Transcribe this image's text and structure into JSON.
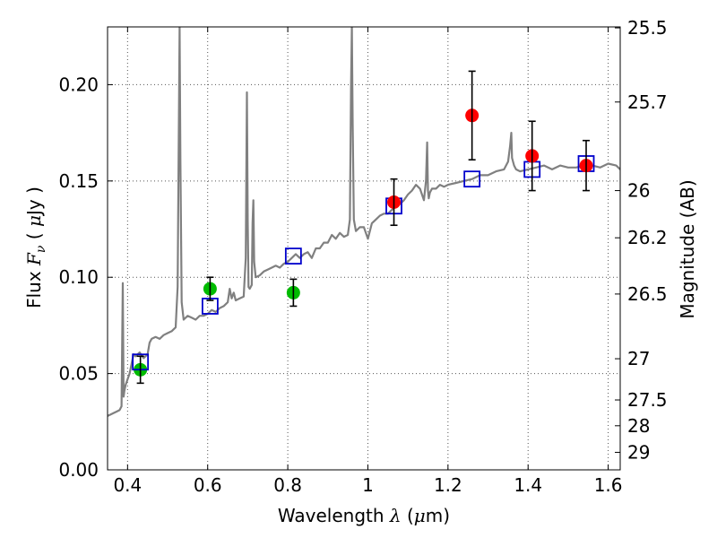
{
  "chart_data": {
    "type": "scatter",
    "title": "",
    "xlabel": {
      "main": "Wavelength",
      "symbol": "λ",
      "unit_open": "(",
      "unit_mu": "μ",
      "unit_rest": "m)"
    },
    "ylabel": {
      "main": "Flux",
      "symbol": "F",
      "subscript": "ν",
      "unit_open": "(",
      "unit_mu": "μ",
      "unit_rest": "Jy )"
    },
    "ylabel_right": "Magnitude (AB)",
    "xlim": [
      0.35,
      1.63
    ],
    "ylim": [
      0.0,
      0.23
    ],
    "grid": true,
    "x_ticks": [
      {
        "value": 0.4,
        "label": "0.4"
      },
      {
        "value": 0.6,
        "label": "0.6"
      },
      {
        "value": 0.8,
        "label": "0.8"
      },
      {
        "value": 1.0,
        "label": "1"
      },
      {
        "value": 1.2,
        "label": "1.2"
      },
      {
        "value": 1.4,
        "label": "1.4"
      },
      {
        "value": 1.6,
        "label": "1.6"
      }
    ],
    "y_ticks": [
      {
        "value": 0.0,
        "label": "0.00"
      },
      {
        "value": 0.05,
        "label": "0.05"
      },
      {
        "value": 0.1,
        "label": "0.10"
      },
      {
        "value": 0.15,
        "label": "0.15"
      },
      {
        "value": 0.2,
        "label": "0.20"
      }
    ],
    "right_ticks": [
      {
        "flux": 0.2295,
        "label": "25.5"
      },
      {
        "flux": 0.191,
        "label": "25.7"
      },
      {
        "flux": 0.145,
        "label": "26"
      },
      {
        "flux": 0.1205,
        "label": "26.2"
      },
      {
        "flux": 0.0913,
        "label": "26.5"
      },
      {
        "flux": 0.0577,
        "label": "27"
      },
      {
        "flux": 0.0363,
        "label": "27.5"
      },
      {
        "flux": 0.0229,
        "label": "28"
      },
      {
        "flux": 0.0091,
        "label": "29"
      }
    ],
    "series": [
      {
        "name": "model spectrum",
        "kind": "line",
        "color": "#808080",
        "x": [
          0.35,
          0.36,
          0.37,
          0.38,
          0.385,
          0.388,
          0.39,
          0.392,
          0.395,
          0.4,
          0.405,
          0.41,
          0.415,
          0.42,
          0.43,
          0.44,
          0.45,
          0.455,
          0.46,
          0.47,
          0.48,
          0.49,
          0.5,
          0.51,
          0.52,
          0.525,
          0.528,
          0.53,
          0.532,
          0.535,
          0.54,
          0.55,
          0.56,
          0.57,
          0.58,
          0.59,
          0.6,
          0.61,
          0.62,
          0.63,
          0.64,
          0.65,
          0.655,
          0.66,
          0.665,
          0.67,
          0.68,
          0.69,
          0.695,
          0.698,
          0.7,
          0.702,
          0.705,
          0.71,
          0.712,
          0.714,
          0.716,
          0.72,
          0.73,
          0.74,
          0.75,
          0.76,
          0.77,
          0.78,
          0.79,
          0.8,
          0.81,
          0.82,
          0.83,
          0.84,
          0.85,
          0.86,
          0.87,
          0.88,
          0.89,
          0.9,
          0.91,
          0.92,
          0.93,
          0.94,
          0.95,
          0.955,
          0.958,
          0.96,
          0.962,
          0.965,
          0.97,
          0.98,
          0.99,
          1.0,
          1.01,
          1.02,
          1.03,
          1.04,
          1.05,
          1.06,
          1.07,
          1.08,
          1.09,
          1.1,
          1.11,
          1.12,
          1.13,
          1.14,
          1.145,
          1.148,
          1.15,
          1.152,
          1.155,
          1.16,
          1.17,
          1.18,
          1.19,
          1.2,
          1.22,
          1.24,
          1.26,
          1.28,
          1.3,
          1.32,
          1.34,
          1.35,
          1.355,
          1.358,
          1.36,
          1.365,
          1.37,
          1.38,
          1.4,
          1.42,
          1.44,
          1.46,
          1.48,
          1.5,
          1.52,
          1.54,
          1.56,
          1.58,
          1.6,
          1.62,
          1.63
        ],
        "y": [
          0.028,
          0.029,
          0.03,
          0.031,
          0.033,
          0.097,
          0.038,
          0.041,
          0.044,
          0.047,
          0.05,
          0.055,
          0.06,
          0.059,
          0.061,
          0.058,
          0.06,
          0.066,
          0.068,
          0.069,
          0.068,
          0.07,
          0.071,
          0.072,
          0.074,
          0.095,
          0.175,
          0.23,
          0.16,
          0.087,
          0.078,
          0.08,
          0.079,
          0.078,
          0.08,
          0.08,
          0.081,
          0.083,
          0.082,
          0.084,
          0.085,
          0.087,
          0.094,
          0.089,
          0.092,
          0.088,
          0.089,
          0.09,
          0.11,
          0.196,
          0.13,
          0.095,
          0.094,
          0.096,
          0.128,
          0.14,
          0.108,
          0.1,
          0.101,
          0.103,
          0.104,
          0.105,
          0.106,
          0.105,
          0.107,
          0.108,
          0.11,
          0.112,
          0.11,
          0.112,
          0.113,
          0.11,
          0.115,
          0.115,
          0.118,
          0.118,
          0.122,
          0.12,
          0.123,
          0.121,
          0.122,
          0.13,
          0.2,
          0.23,
          0.18,
          0.13,
          0.124,
          0.126,
          0.126,
          0.12,
          0.128,
          0.13,
          0.132,
          0.133,
          0.133,
          0.135,
          0.137,
          0.138,
          0.14,
          0.143,
          0.145,
          0.148,
          0.146,
          0.14,
          0.15,
          0.17,
          0.145,
          0.141,
          0.144,
          0.146,
          0.146,
          0.148,
          0.147,
          0.148,
          0.149,
          0.15,
          0.151,
          0.153,
          0.153,
          0.155,
          0.156,
          0.16,
          0.168,
          0.175,
          0.162,
          0.158,
          0.156,
          0.155,
          0.156,
          0.157,
          0.158,
          0.156,
          0.158,
          0.157,
          0.157,
          0.158,
          0.158,
          0.157,
          0.159,
          0.158,
          0.156
        ]
      },
      {
        "name": "green photometry",
        "kind": "points",
        "marker": "circle",
        "color": "#00bb00",
        "points": [
          {
            "x": 0.432,
            "y": 0.052,
            "yerr": 0.007
          },
          {
            "x": 0.606,
            "y": 0.094,
            "yerr": 0.006
          },
          {
            "x": 0.814,
            "y": 0.092,
            "yerr": 0.007
          }
        ]
      },
      {
        "name": "red photometry",
        "kind": "points",
        "marker": "circle",
        "color": "#ff0000",
        "points": [
          {
            "x": 1.065,
            "y": 0.139,
            "yerr": 0.012
          },
          {
            "x": 1.26,
            "y": 0.184,
            "yerr": 0.023
          },
          {
            "x": 1.41,
            "y": 0.163,
            "yerr": 0.018
          },
          {
            "x": 1.545,
            "y": 0.158,
            "yerr": 0.013
          }
        ]
      },
      {
        "name": "model synthetic photometry",
        "kind": "points",
        "marker": "open-square",
        "color": "#0000cc",
        "points": [
          {
            "x": 0.432,
            "y": 0.056
          },
          {
            "x": 0.606,
            "y": 0.085
          },
          {
            "x": 0.814,
            "y": 0.111
          },
          {
            "x": 1.065,
            "y": 0.137
          },
          {
            "x": 1.26,
            "y": 0.151
          },
          {
            "x": 1.41,
            "y": 0.156
          },
          {
            "x": 1.545,
            "y": 0.159
          }
        ]
      }
    ],
    "colors": {
      "spectrum": "#808080",
      "green": "#00bb00",
      "red": "#ff0000",
      "square": "#0000cc",
      "grid": "#555555"
    }
  }
}
